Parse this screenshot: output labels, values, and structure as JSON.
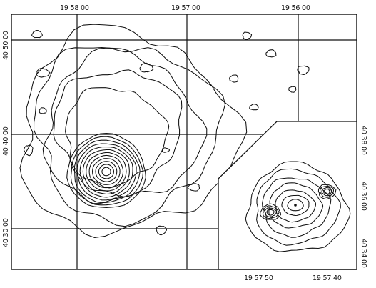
{
  "map": {
    "top_ra_labels": [
      "19 58 00",
      "19 57 00",
      "19 56 00"
    ],
    "left_dec_labels": [
      "40 50 00",
      "40 40 00",
      "40 30 00"
    ]
  },
  "inset": {
    "bottom_ra_labels": [
      "19 57 50",
      "19 57 40"
    ],
    "right_dec_labels": [
      "40 38 00",
      "40 36 00",
      "40 34 00"
    ]
  }
}
